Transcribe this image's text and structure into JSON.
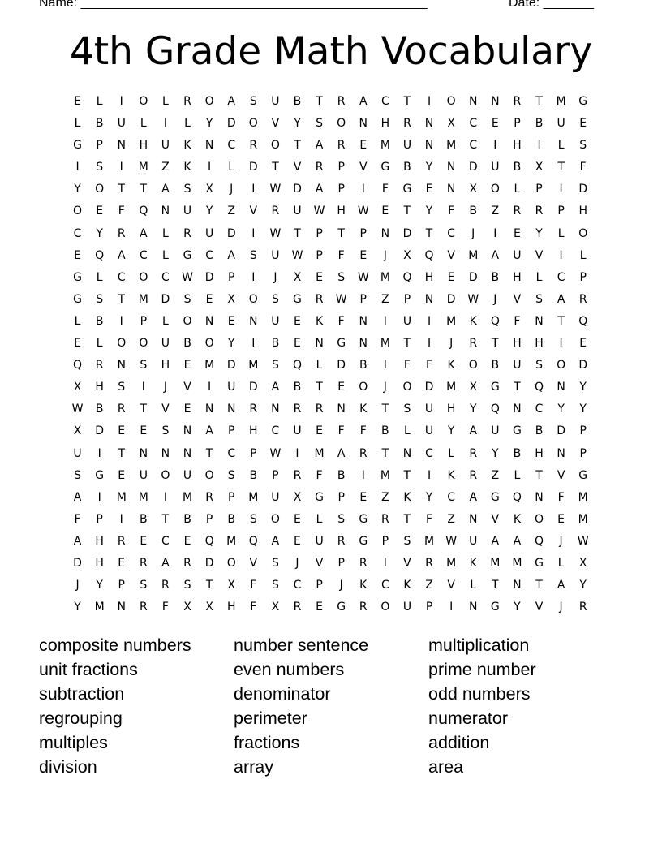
{
  "header": {
    "name_label": "Name: ________________________________________________",
    "date_label": "Date: _______"
  },
  "title": "4th Grade Math Vocabulary",
  "grid": [
    "ELIOLROASUBTRACTIONNRTMG",
    "LBULILYDOVYSONHRNXCEPBUE",
    "GPNHUKNCROTAREMUNMCIHILS",
    "ISIMZKILDTVRPVGBYNDUBXTF",
    "YOTTASXJIWDAPIFGENXOLPID",
    "OEFQNUYZVRUWHWETYFBZRRPH",
    "CYRALRUDIWTPTPNDTCJIEYLO",
    "EQACLGCASUWPFEJXQVMAUVIL",
    "GLCOCWDPIJXESWMQHEDBHLCP",
    "GSTMDSEXOSGRWPZPNDWJVSAR",
    "LBIPLONENUEKFNIUIMKQFNTQ",
    "ELOOUBOYIBENGNMTIJRTHHIE",
    "QRNSHEMDMSQLDBIFFKOBUSOD",
    "XHSIJVIUDABTEOJODMXGTQNY",
    "WBRTVENNRNRRNKTSUHYQNCYY",
    "XDEESNAPHCUEFFBLUYAUGBDP",
    "UITNNNTCPWIMARTNCLRYBHNP",
    "SGEUOUOSBPRFBIMTIKRZLTVG",
    "AIMMIMRPMUXGPEZKYCAGQNFM",
    "FPIBTBPBSOELSGRTFZNVKOEM",
    "AHRECEQMQAEURGPSMWUAAQJW",
    "DHERARDOVSJVPRIVRMKMMGLX",
    "JYPSRSTXFSCPJKCKZVLTNTAY",
    "YMNRFXXHFXREGROUPINGYVJR"
  ],
  "word_columns": [
    [
      "composite numbers",
      "unit fractions",
      "subtraction",
      "regrouping",
      "multiples",
      "division"
    ],
    [
      "number sentence",
      "even numbers",
      "denominator",
      "perimeter",
      "fractions",
      "array"
    ],
    [
      "multiplication",
      "prime number",
      "odd numbers",
      "numerator",
      "addition",
      "area"
    ]
  ]
}
